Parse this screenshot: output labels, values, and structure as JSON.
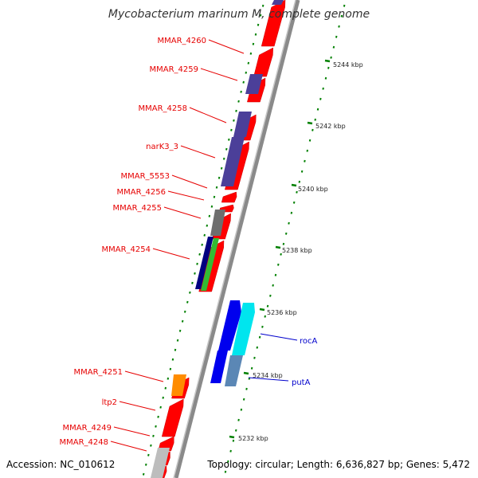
{
  "title": "Mycobacterium marinum M, complete genome",
  "accession": "Accession: NC_010612",
  "topology": "Topology: circular; Length: 6,636,827 bp; Genes: 5,472",
  "colors": {
    "background": "#ffffff",
    "backbone": "#8a8a8a",
    "label_red": "#e60000",
    "label_blue": "#0000cc",
    "tick_green": "#008000",
    "gene_red": "#ff0000",
    "gene_purple": "#4b3f99",
    "gene_gray": "#6e6e6e",
    "gene_navy": "#000080",
    "gene_green": "#33bb33",
    "gene_blue": "#0000ee",
    "gene_cyan": "#00e5ee",
    "gene_steel": "#5b87b5",
    "gene_orange": "#ff8c00",
    "gene_lightgray": "#bdbdbd"
  },
  "ticks": [
    "5244 kbp",
    "5242 kbp",
    "5240 kbp",
    "5238 kbp",
    "5236 kbp",
    "5234 kbp",
    "5232 kbp"
  ],
  "gene_labels": [
    {
      "id": "mmar-4260",
      "text": "MMAR_4260",
      "color": "red"
    },
    {
      "id": "mmar-4259",
      "text": "MMAR_4259",
      "color": "red"
    },
    {
      "id": "mmar-4258",
      "text": "MMAR_4258",
      "color": "red"
    },
    {
      "id": "nark3-3",
      "text": "narK3_3",
      "color": "red"
    },
    {
      "id": "mmar-5553",
      "text": "MMAR_5553",
      "color": "red"
    },
    {
      "id": "mmar-4256",
      "text": "MMAR_4256",
      "color": "red"
    },
    {
      "id": "mmar-4255",
      "text": "MMAR_4255",
      "color": "red"
    },
    {
      "id": "mmar-4254",
      "text": "MMAR_4254",
      "color": "red"
    },
    {
      "id": "roca",
      "text": "rocA",
      "color": "blue"
    },
    {
      "id": "puta",
      "text": "putA",
      "color": "blue"
    },
    {
      "id": "mmar-4251",
      "text": "MMAR_4251",
      "color": "red"
    },
    {
      "id": "ltp2",
      "text": "ltp2",
      "color": "red"
    },
    {
      "id": "mmar-4249",
      "text": "MMAR_4249",
      "color": "red"
    },
    {
      "id": "mmar-4248",
      "text": "MMAR_4248",
      "color": "red"
    }
  ]
}
